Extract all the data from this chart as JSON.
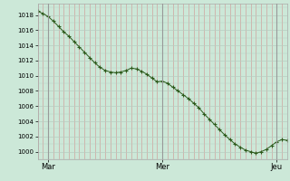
{
  "ylabel_values": [
    1000,
    1002,
    1004,
    1006,
    1008,
    1010,
    1012,
    1014,
    1016,
    1018
  ],
  "ylim": [
    999.0,
    1019.5
  ],
  "xlim": [
    0,
    48
  ],
  "xtick_positions": [
    2,
    24,
    46
  ],
  "xtick_labels": [
    "Mar",
    "Mer",
    "Jeu"
  ],
  "background_color": "#cce8d8",
  "grid_color_v": "#d09090",
  "grid_color_h": "#b8ccc0",
  "line_color": "#2d5a1b",
  "marker_color": "#2d5a1b",
  "data_x": [
    0,
    1,
    2,
    3,
    4,
    5,
    6,
    7,
    8,
    9,
    10,
    11,
    12,
    13,
    14,
    15,
    16,
    17,
    18,
    19,
    20,
    21,
    22,
    23,
    24,
    25,
    26,
    27,
    28,
    29,
    30,
    31,
    32,
    33,
    34,
    35,
    36,
    37,
    38,
    39,
    40,
    41,
    42,
    43,
    44,
    45,
    46,
    47,
    48
  ],
  "data_y": [
    1018.5,
    1018.2,
    1017.8,
    1017.2,
    1016.5,
    1015.8,
    1015.2,
    1014.5,
    1013.8,
    1013.1,
    1012.4,
    1011.7,
    1011.1,
    1010.7,
    1010.5,
    1010.4,
    1010.5,
    1010.7,
    1011.0,
    1010.9,
    1010.6,
    1010.2,
    1009.7,
    1009.2,
    1009.3,
    1009.0,
    1008.5,
    1008.0,
    1007.5,
    1007.0,
    1006.4,
    1005.8,
    1005.0,
    1004.3,
    1003.6,
    1002.9,
    1002.2,
    1001.6,
    1001.0,
    1000.6,
    1000.2,
    1000.0,
    999.8,
    1000.0,
    1000.3,
    1000.8,
    1001.3,
    1001.6,
    1001.5
  ]
}
